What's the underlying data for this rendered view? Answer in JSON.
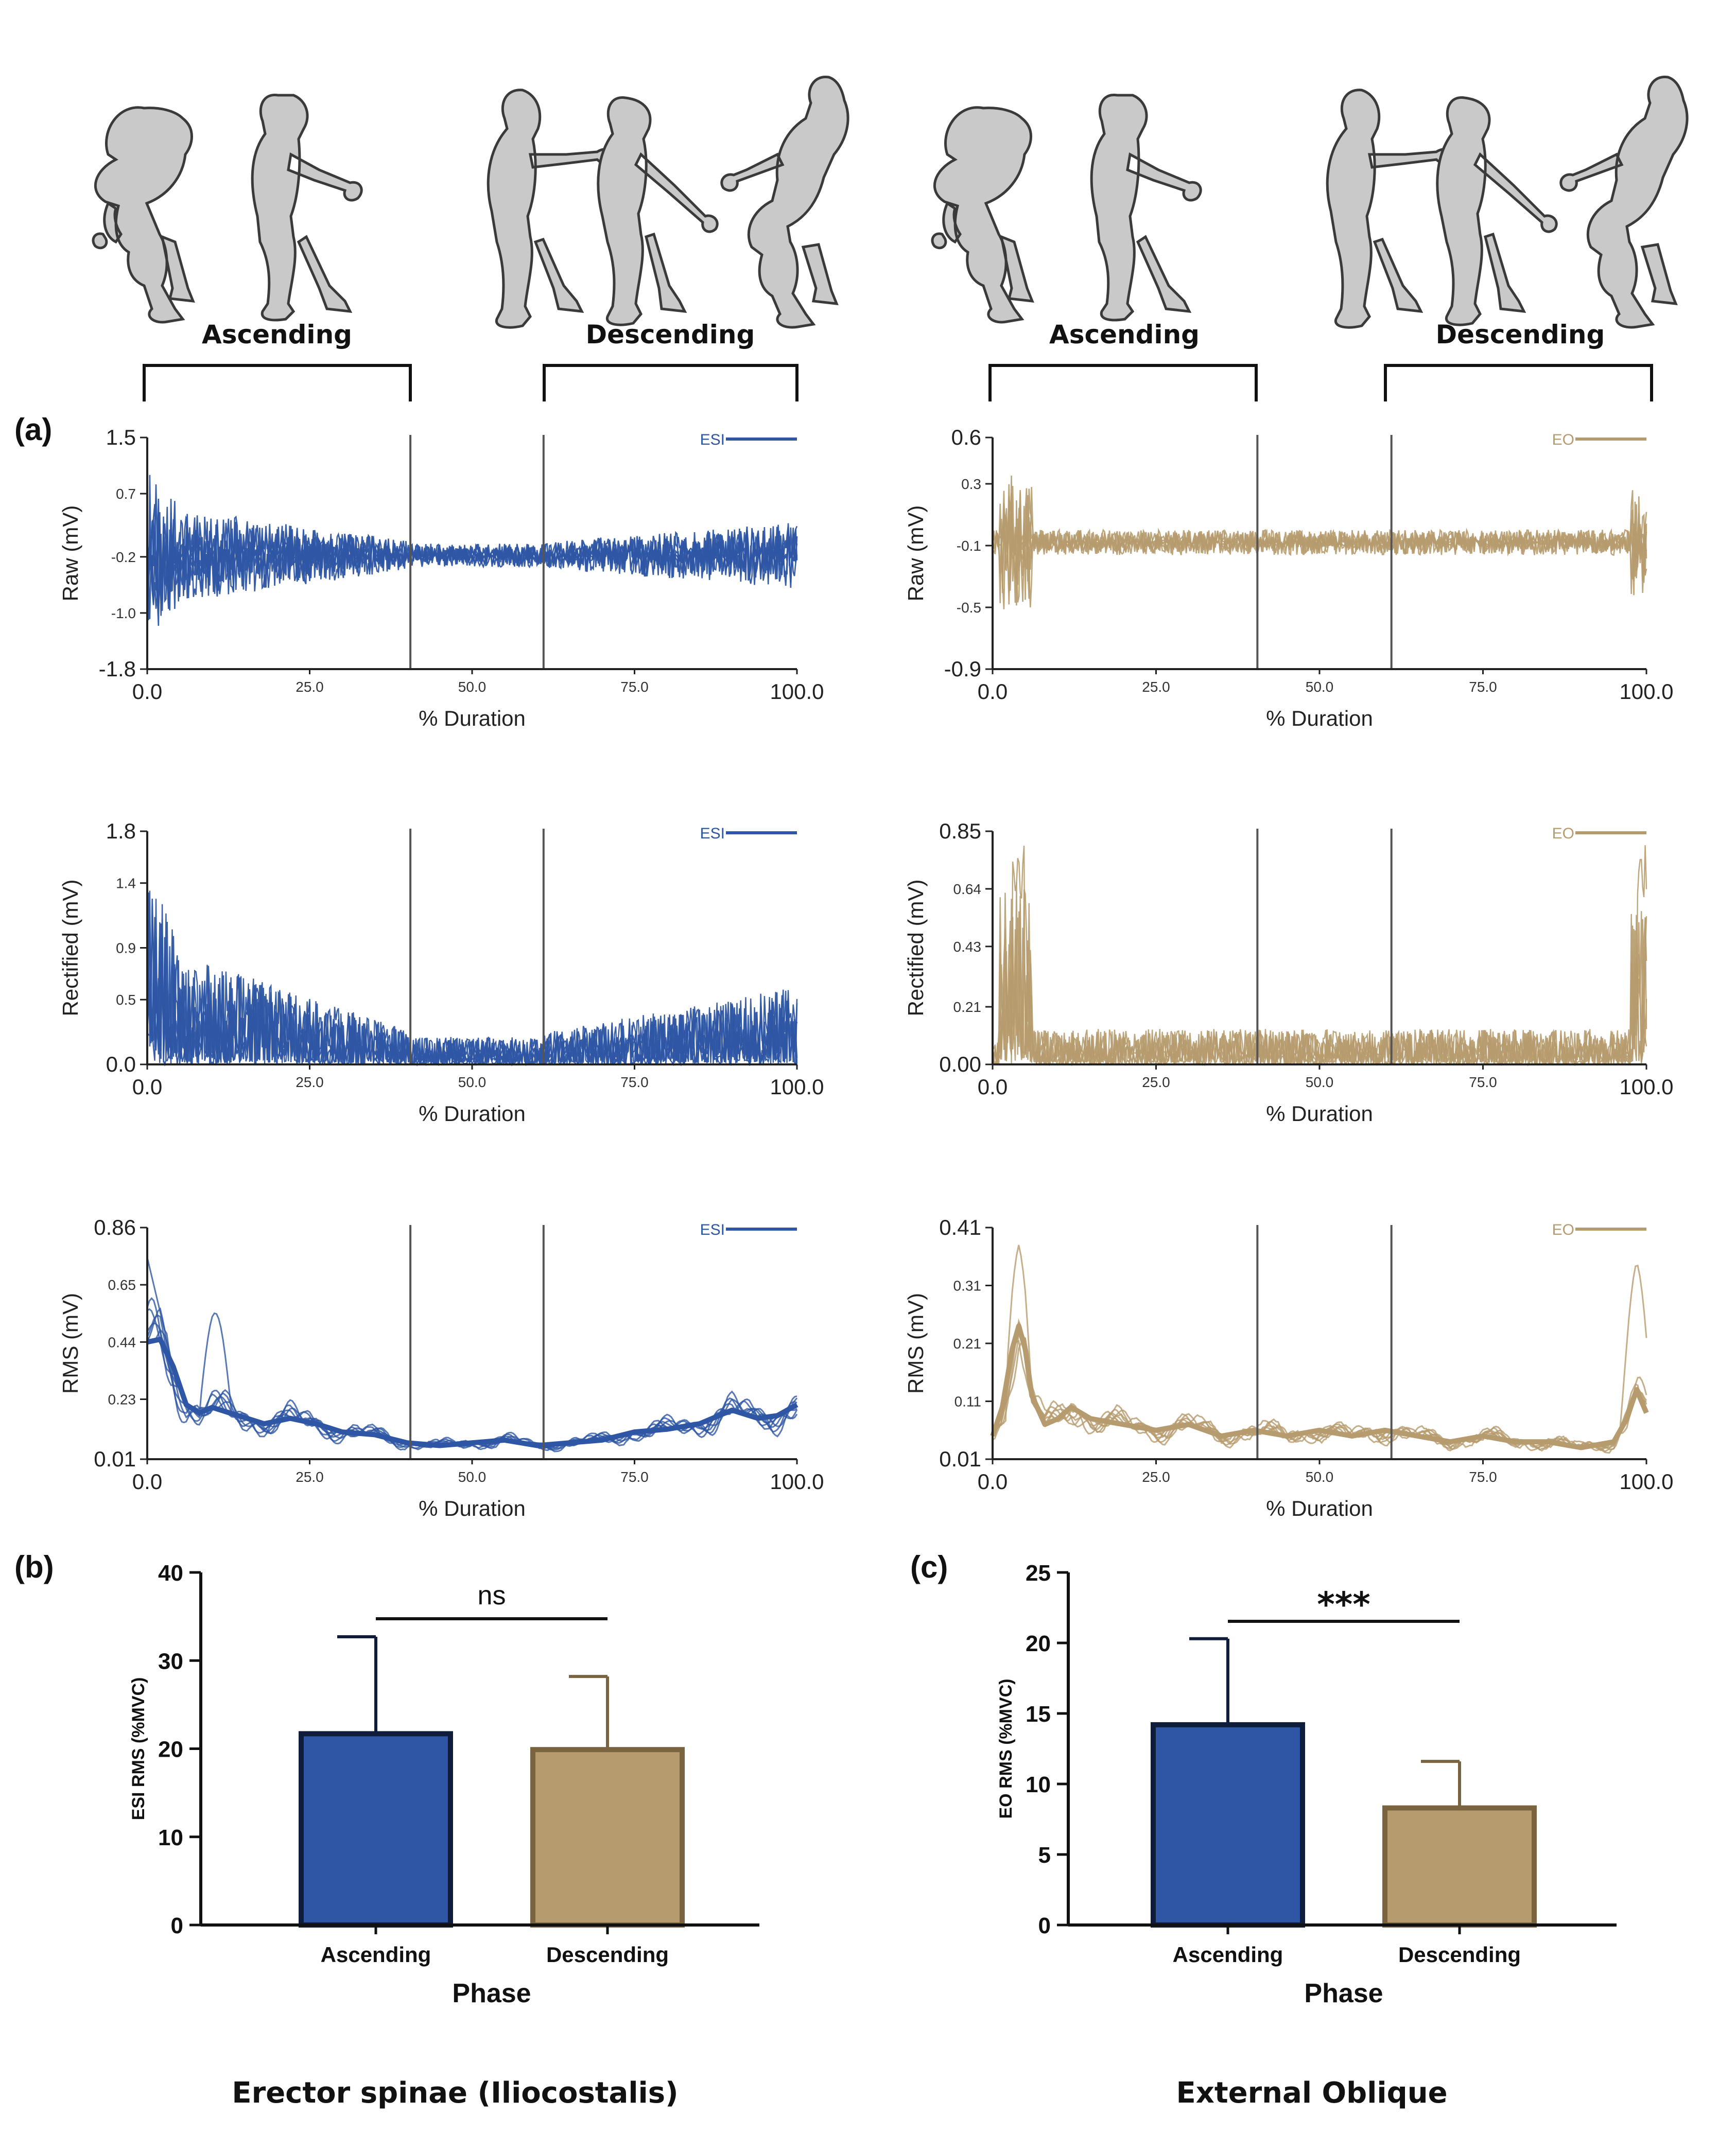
{
  "colors": {
    "esi": "#2e56a4",
    "eo": "#b69b6e",
    "esi_dark": "#0f1c3a",
    "eo_dark": "#7a6440"
  },
  "phases": {
    "left": [
      "Ascending",
      "Descending"
    ],
    "right": [
      "Ascending",
      "Descending"
    ]
  },
  "panel_labels": {
    "a": "(a)",
    "b": "(b)",
    "c": "(c)"
  },
  "muscles": {
    "left": "Erector spinae (Iliocostalis)",
    "right": "External Oblique"
  },
  "chart_data": [
    {
      "type": "line",
      "id": "esi-raw",
      "muscle": "ESI",
      "legend": "ESI",
      "ylabel": "Raw (mV)",
      "xlabel": "% Duration",
      "xlim": [
        0,
        100
      ],
      "ylim": [
        -1.8,
        1.5
      ],
      "xticks_major": [
        "0.0",
        "100.0"
      ],
      "xticks_minor": [
        "25.0",
        "50.0",
        "75.0"
      ],
      "yticks_major": [
        "1.5",
        "-1.8"
      ],
      "yticks_minor": [
        "0.7",
        "-0.2",
        "-1.0"
      ],
      "yticks_values": [
        1.5,
        0.7,
        -0.2,
        -1.0,
        -1.8
      ],
      "phase_dividers": [
        40.5,
        61.0
      ]
    },
    {
      "type": "line",
      "id": "eo-raw",
      "muscle": "EO",
      "legend": "EO",
      "ylabel": "Raw (mV)",
      "xlabel": "% Duration",
      "xlim": [
        0,
        100
      ],
      "ylim": [
        -0.9,
        0.6
      ],
      "xticks_major": [
        "0.0",
        "100.0"
      ],
      "xticks_minor": [
        "25.0",
        "50.0",
        "75.0"
      ],
      "yticks_major": [
        "0.6",
        "-0.9"
      ],
      "yticks_minor": [
        "0.3",
        "-0.1",
        "-0.5"
      ],
      "yticks_values": [
        0.6,
        0.3,
        -0.1,
        -0.5,
        -0.9
      ],
      "phase_dividers": [
        40.5,
        61.0
      ]
    },
    {
      "type": "line",
      "id": "esi-rect",
      "muscle": "ESI",
      "legend": "ESI",
      "ylabel": "Rectified (mV)",
      "xlabel": "% Duration",
      "xlim": [
        0,
        100
      ],
      "ylim": [
        0,
        1.8
      ],
      "xticks_major": [
        "0.0",
        "100.0"
      ],
      "xticks_minor": [
        "25.0",
        "50.0",
        "75.0"
      ],
      "yticks_major": [
        "1.8",
        "0.0"
      ],
      "yticks_minor": [
        "1.4",
        "0.9",
        "0.5"
      ],
      "yticks_values": [
        1.8,
        1.4,
        0.9,
        0.5,
        0.0
      ],
      "phase_dividers": [
        40.5,
        61.0
      ]
    },
    {
      "type": "line",
      "id": "eo-rect",
      "muscle": "EO",
      "legend": "EO",
      "ylabel": "Rectified (mV)",
      "xlabel": "% Duration",
      "xlim": [
        0,
        100
      ],
      "ylim": [
        0,
        0.85
      ],
      "xticks_major": [
        "0.0",
        "100.0"
      ],
      "xticks_minor": [
        "25.0",
        "50.0",
        "75.0"
      ],
      "yticks_major": [
        "0.85",
        "0.00"
      ],
      "yticks_minor": [
        "0.64",
        "0.43",
        "0.21"
      ],
      "yticks_values": [
        0.85,
        0.64,
        0.43,
        0.21,
        0.0
      ],
      "phase_dividers": [
        40.5,
        61.0
      ]
    },
    {
      "type": "line",
      "id": "esi-rms",
      "muscle": "ESI",
      "legend": "ESI",
      "ylabel": "RMS (mV)",
      "xlabel": "% Duration",
      "xlim": [
        0,
        100
      ],
      "ylim": [
        0.01,
        0.86
      ],
      "xticks_major": [
        "0.0",
        "100.0"
      ],
      "xticks_minor": [
        "25.0",
        "50.0",
        "75.0"
      ],
      "yticks_major": [
        "0.86",
        "0.01"
      ],
      "yticks_minor": [
        "0.65",
        "0.44",
        "0.23"
      ],
      "yticks_values": [
        0.86,
        0.65,
        0.44,
        0.23,
        0.01
      ],
      "phase_dividers": [
        40.5,
        61.0
      ],
      "mean_curve": {
        "x": [
          0,
          2,
          4,
          6,
          8,
          10,
          14,
          18,
          22,
          26,
          30,
          35,
          40,
          45,
          50,
          55,
          60,
          65,
          70,
          75,
          80,
          85,
          90,
          94,
          97,
          100
        ],
        "y": [
          0.44,
          0.45,
          0.35,
          0.21,
          0.18,
          0.2,
          0.17,
          0.14,
          0.16,
          0.14,
          0.11,
          0.1,
          0.07,
          0.06,
          0.07,
          0.08,
          0.06,
          0.07,
          0.08,
          0.11,
          0.12,
          0.14,
          0.19,
          0.16,
          0.17,
          0.21
        ]
      }
    },
    {
      "type": "line",
      "id": "eo-rms",
      "muscle": "EO",
      "legend": "EO",
      "ylabel": "RMS (mV)",
      "xlabel": "% Duration",
      "xlim": [
        0,
        100
      ],
      "ylim": [
        0.01,
        0.41
      ],
      "xticks_major": [
        "0.0",
        "100.0"
      ],
      "xticks_minor": [
        "25.0",
        "50.0",
        "75.0"
      ],
      "yticks_major": [
        "0.41",
        "0.01"
      ],
      "yticks_minor": [
        "0.31",
        "0.21",
        "0.11"
      ],
      "yticks_values": [
        0.41,
        0.31,
        0.21,
        0.11,
        0.01
      ],
      "phase_dividers": [
        40.5,
        61.0
      ],
      "mean_curve": {
        "x": [
          0,
          1.5,
          3,
          4,
          5,
          6,
          8,
          10,
          12,
          15,
          20,
          25,
          30,
          35,
          40,
          45,
          50,
          55,
          60,
          65,
          70,
          75,
          80,
          85,
          90,
          95,
          97,
          98.5,
          100
        ],
        "y": [
          0.05,
          0.1,
          0.2,
          0.24,
          0.2,
          0.12,
          0.07,
          0.08,
          0.1,
          0.08,
          0.07,
          0.06,
          0.07,
          0.05,
          0.06,
          0.05,
          0.06,
          0.05,
          0.06,
          0.05,
          0.04,
          0.05,
          0.04,
          0.04,
          0.03,
          0.04,
          0.08,
          0.13,
          0.09
        ]
      }
    },
    {
      "type": "bar",
      "id": "esi-bar",
      "muscle": "ESI",
      "ylabel": "ESI RMS (%MVC)",
      "xlabel": "Phase",
      "categories": [
        "Ascending",
        "Descending"
      ],
      "values": [
        21.7,
        19.9
      ],
      "errors": [
        11.0,
        8.3
      ],
      "ylim": [
        0,
        40
      ],
      "yticks": [
        0,
        10,
        20,
        30,
        40
      ],
      "significance": "ns"
    },
    {
      "type": "bar",
      "id": "eo-bar",
      "muscle": "EO",
      "ylabel": "EO RMS (%MVC)",
      "xlabel": "Phase",
      "categories": [
        "Ascending",
        "Descending"
      ],
      "values": [
        14.2,
        8.3
      ],
      "errors": [
        6.1,
        3.3
      ],
      "ylim": [
        0,
        25
      ],
      "yticks": [
        0,
        5,
        10,
        15,
        20,
        25
      ],
      "significance": "***"
    }
  ]
}
